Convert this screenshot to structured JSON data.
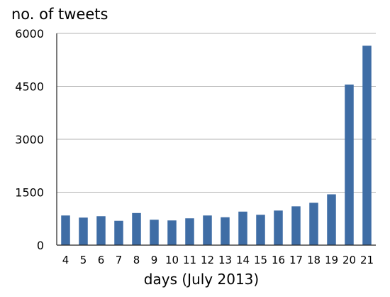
{
  "chart_data": {
    "type": "bar",
    "ylabel": "no. of tweets",
    "xlabel": "days (July 2013)",
    "categories": [
      "4",
      "5",
      "6",
      "7",
      "8",
      "9",
      "10",
      "11",
      "12",
      "13",
      "14",
      "15",
      "16",
      "17",
      "18",
      "19",
      "20",
      "21"
    ],
    "values": [
      840,
      780,
      820,
      690,
      910,
      720,
      700,
      760,
      840,
      790,
      950,
      860,
      980,
      1100,
      1200,
      1440,
      4550,
      5650
    ],
    "yticks": [
      0,
      1500,
      3000,
      4500,
      6000
    ],
    "ylim": [
      0,
      6000
    ],
    "grid": true,
    "legend": false,
    "colors": {
      "bar": "#3F6DA5",
      "grid": "#b3b3b3",
      "axis": "#222222"
    }
  }
}
